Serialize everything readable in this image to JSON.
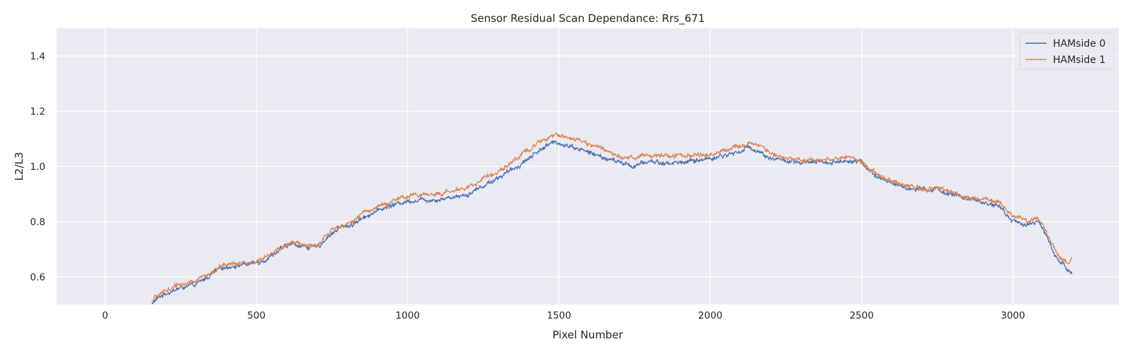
{
  "chart_data": {
    "type": "line",
    "title": "Sensor Residual Scan Dependance: Rrs_671",
    "xlabel": "Pixel Number",
    "ylabel": "L2/L3",
    "xlim": [
      -160,
      3350
    ],
    "ylim": [
      0.5,
      1.5
    ],
    "xticks": [
      0,
      500,
      1000,
      1500,
      2000,
      2500,
      3000
    ],
    "yticks": [
      0.6,
      0.8,
      1.0,
      1.2,
      1.4
    ],
    "xtick_labels": [
      "0",
      "500",
      "1000",
      "1500",
      "2000",
      "2500",
      "3000"
    ],
    "ytick_labels": [
      "0.6",
      "0.8",
      "1.0",
      "1.2",
      "1.4"
    ],
    "grid": true,
    "legend_position": "upper right",
    "series": [
      {
        "name": "HAMside 0",
        "color": "#4c72b0",
        "noise": 0.012,
        "x": [
          155,
          170,
          200,
          250,
          300,
          340,
          380,
          420,
          460,
          500,
          540,
          580,
          620,
          660,
          700,
          740,
          780,
          820,
          860,
          900,
          950,
          1000,
          1050,
          1100,
          1150,
          1200,
          1250,
          1300,
          1350,
          1400,
          1450,
          1480,
          1500,
          1550,
          1600,
          1650,
          1700,
          1750,
          1800,
          1850,
          1900,
          1950,
          2000,
          2050,
          2100,
          2130,
          2150,
          2200,
          2250,
          2300,
          2350,
          2400,
          2450,
          2480,
          2500,
          2550,
          2600,
          2650,
          2700,
          2750,
          2800,
          2850,
          2900,
          2950,
          3000,
          3050,
          3080,
          3100,
          3130,
          3150,
          3170,
          3185,
          3195
        ],
        "y": [
          0.5,
          0.52,
          0.54,
          0.56,
          0.57,
          0.6,
          0.63,
          0.64,
          0.645,
          0.65,
          0.67,
          0.7,
          0.72,
          0.71,
          0.705,
          0.75,
          0.78,
          0.79,
          0.82,
          0.84,
          0.86,
          0.875,
          0.88,
          0.88,
          0.89,
          0.9,
          0.93,
          0.96,
          0.99,
          1.03,
          1.07,
          1.085,
          1.085,
          1.07,
          1.05,
          1.03,
          1.015,
          1.0,
          1.02,
          1.01,
          1.015,
          1.02,
          1.03,
          1.04,
          1.055,
          1.07,
          1.06,
          1.03,
          1.02,
          1.01,
          1.015,
          1.015,
          1.02,
          1.025,
          1.015,
          0.96,
          0.94,
          0.92,
          0.915,
          0.915,
          0.9,
          0.88,
          0.87,
          0.86,
          0.8,
          0.79,
          0.8,
          0.77,
          0.7,
          0.66,
          0.64,
          0.62,
          0.61
        ]
      },
      {
        "name": "HAMside 1",
        "color": "#dd8452",
        "noise": 0.012,
        "x": [
          155,
          170,
          200,
          250,
          300,
          340,
          380,
          420,
          460,
          500,
          540,
          580,
          620,
          660,
          700,
          740,
          780,
          820,
          860,
          900,
          950,
          1000,
          1050,
          1100,
          1150,
          1200,
          1250,
          1300,
          1350,
          1400,
          1450,
          1480,
          1500,
          1550,
          1600,
          1650,
          1700,
          1750,
          1800,
          1850,
          1900,
          1950,
          2000,
          2050,
          2100,
          2130,
          2150,
          2200,
          2250,
          2300,
          2350,
          2400,
          2450,
          2480,
          2500,
          2550,
          2600,
          2650,
          2700,
          2750,
          2800,
          2850,
          2900,
          2950,
          3000,
          3050,
          3080,
          3100,
          3130,
          3150,
          3170,
          3185,
          3195
        ],
        "y": [
          0.505,
          0.53,
          0.55,
          0.575,
          0.585,
          0.61,
          0.635,
          0.645,
          0.65,
          0.655,
          0.675,
          0.705,
          0.725,
          0.715,
          0.71,
          0.76,
          0.79,
          0.8,
          0.835,
          0.855,
          0.875,
          0.89,
          0.9,
          0.9,
          0.91,
          0.925,
          0.955,
          0.985,
          1.02,
          1.06,
          1.1,
          1.115,
          1.115,
          1.1,
          1.08,
          1.06,
          1.04,
          1.03,
          1.045,
          1.035,
          1.04,
          1.04,
          1.045,
          1.06,
          1.075,
          1.09,
          1.08,
          1.05,
          1.03,
          1.02,
          1.025,
          1.025,
          1.03,
          1.03,
          1.02,
          0.97,
          0.945,
          0.925,
          0.92,
          0.92,
          0.905,
          0.89,
          0.88,
          0.875,
          0.82,
          0.805,
          0.81,
          0.785,
          0.72,
          0.675,
          0.655,
          0.64,
          0.66
        ]
      }
    ]
  }
}
